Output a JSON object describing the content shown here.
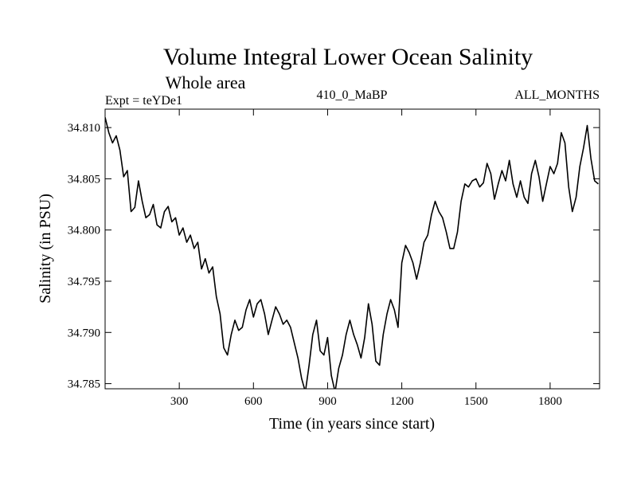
{
  "chart_data": {
    "type": "line",
    "title": "Volume Integral Lower Ocean Salinity",
    "subtitle": "Whole area",
    "header_left": "Expt = teYDe1",
    "header_center": "410_0_MaBP",
    "header_right": "ALL_MONTHS",
    "xlabel": "Time (in years since start)",
    "ylabel": "Salinity (in PSU)",
    "xlim": [
      0,
      2000
    ],
    "ylim": [
      34.7845,
      34.8118
    ],
    "xticks": [
      300,
      600,
      900,
      1200,
      1500,
      1800
    ],
    "xtick_labels": [
      "300",
      "600",
      "900",
      "1200",
      "1500",
      "1800"
    ],
    "yticks": [
      34.785,
      34.79,
      34.795,
      34.8,
      34.805,
      34.81
    ],
    "ytick_labels": [
      "34.785",
      "34.790",
      "34.795",
      "34.800",
      "34.805",
      "34.810"
    ],
    "grid": false,
    "series": [
      {
        "name": "Salinity",
        "color": "#000000",
        "x": [
          0,
          15,
          30,
          45,
          60,
          75,
          90,
          105,
          120,
          135,
          150,
          165,
          180,
          195,
          210,
          225,
          240,
          255,
          270,
          285,
          300,
          315,
          330,
          345,
          360,
          375,
          390,
          405,
          420,
          435,
          450,
          465,
          480,
          495,
          510,
          525,
          540,
          555,
          570,
          585,
          600,
          615,
          630,
          645,
          660,
          675,
          690,
          705,
          720,
          735,
          750,
          765,
          780,
          795,
          810,
          825,
          840,
          855,
          870,
          885,
          900,
          915,
          930,
          945,
          960,
          975,
          990,
          1005,
          1020,
          1035,
          1050,
          1065,
          1080,
          1095,
          1110,
          1125,
          1140,
          1155,
          1170,
          1185,
          1200,
          1215,
          1230,
          1245,
          1260,
          1275,
          1290,
          1305,
          1320,
          1335,
          1350,
          1365,
          1380,
          1395,
          1410,
          1425,
          1440,
          1455,
          1470,
          1485,
          1500,
          1515,
          1530,
          1545,
          1560,
          1575,
          1590,
          1605,
          1620,
          1635,
          1650,
          1665,
          1680,
          1695,
          1710,
          1725,
          1740,
          1755,
          1770,
          1785,
          1800,
          1815,
          1830,
          1845,
          1860,
          1875,
          1890,
          1905,
          1920,
          1935,
          1950,
          1965,
          1980,
          1995
        ],
        "values": [
          34.811,
          34.8095,
          34.8085,
          34.8092,
          34.8078,
          34.8052,
          34.8058,
          34.8018,
          34.8022,
          34.8048,
          34.8028,
          34.8012,
          34.8015,
          34.8025,
          34.8005,
          34.8002,
          34.8018,
          34.8023,
          34.8008,
          34.8012,
          34.7995,
          34.8002,
          34.7988,
          34.7995,
          34.7982,
          34.7988,
          34.7962,
          34.7972,
          34.7958,
          34.7964,
          34.7935,
          34.7918,
          34.7885,
          34.7878,
          34.7898,
          34.7912,
          34.7902,
          34.7905,
          34.7922,
          34.7932,
          34.7915,
          34.7928,
          34.7932,
          34.7918,
          34.7898,
          34.7912,
          34.7925,
          34.7918,
          34.7908,
          34.7912,
          34.7905,
          34.789,
          34.7875,
          34.7855,
          34.7842,
          34.7868,
          34.7898,
          34.7912,
          34.7882,
          34.7878,
          34.7895,
          34.7858,
          34.7842,
          34.7865,
          34.7878,
          34.7898,
          34.7912,
          34.7898,
          34.7888,
          34.7875,
          34.7895,
          34.7928,
          34.7908,
          34.7872,
          34.7868,
          34.7898,
          34.7918,
          34.7932,
          34.7922,
          34.7905,
          34.7968,
          34.7985,
          34.7978,
          34.7968,
          34.7952,
          34.7968,
          34.7988,
          34.7995,
          34.8015,
          34.8028,
          34.8018,
          34.8012,
          34.7998,
          34.7982,
          34.7982,
          34.7998,
          34.8028,
          34.8045,
          34.8042,
          34.8048,
          34.805,
          34.8042,
          34.8046,
          34.8065,
          34.8055,
          34.803,
          34.8045,
          34.8058,
          34.8048,
          34.8068,
          34.8045,
          34.8032,
          34.8048,
          34.8032,
          34.8026,
          34.8055,
          34.8068,
          34.8052,
          34.8028,
          34.8045,
          34.8062,
          34.8055,
          34.8065,
          34.8095,
          34.8085,
          34.8042,
          34.8018,
          34.8032,
          34.8062,
          34.808,
          34.8102,
          34.807,
          34.8048,
          34.8045
        ]
      }
    ]
  }
}
